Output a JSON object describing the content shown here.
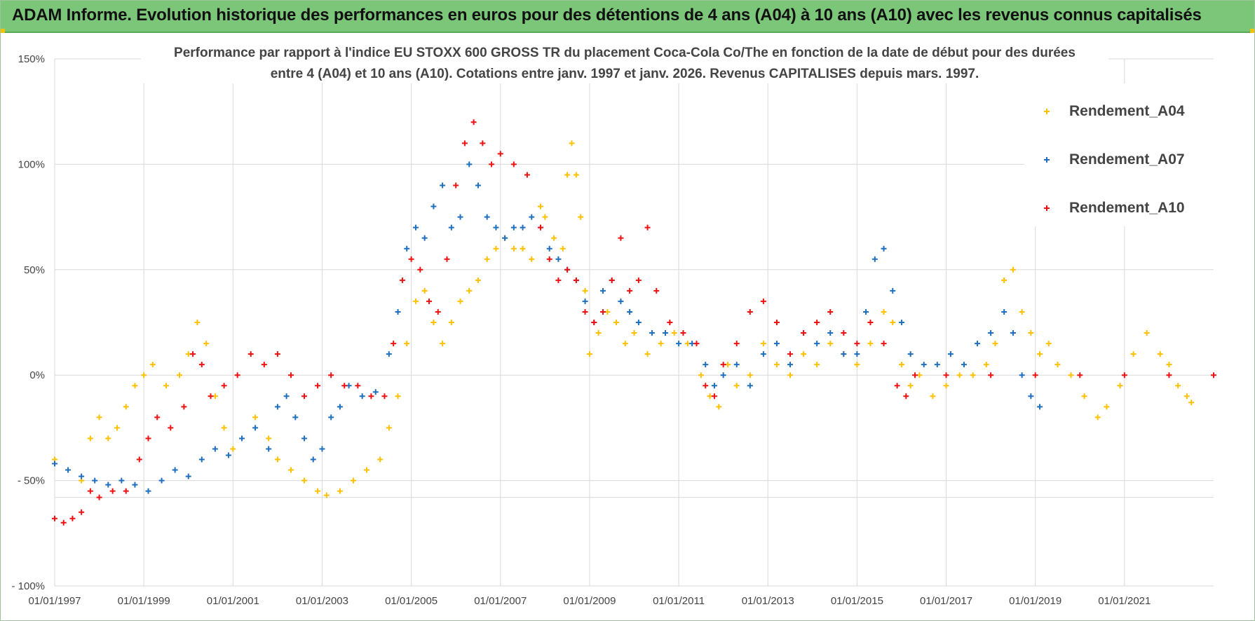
{
  "banner": {
    "title": "ADAM Informe. Evolution historique des performances en euros pour des détentions de 4 ans (A04) à 10 ans (A10) avec les revenus connus capitalisés"
  },
  "colors": {
    "banner_bg": "#7cc67a",
    "A04": "#ffc000",
    "A07": "#1f6fbf",
    "A10": "#ee1111"
  },
  "chart_data": {
    "type": "scatter",
    "title_line1": "Performance par rapport à l'indice EU STOXX 600 GROSS TR  du placement Coca-Cola Co/The en fonction de la date de début pour des durées",
    "title_line2": "entre 4 (A04) et 10 ans (A10). Cotations entre janv. 1997 et janv. 2026. Revenus CAPITALISES depuis mars. 1997.",
    "xlabel": "",
    "ylabel": "",
    "xlim": [
      1997.0,
      2023.0
    ],
    "ylim": [
      -100,
      150
    ],
    "y_ticks": [
      {
        "value": 150,
        "label": "150%"
      },
      {
        "value": 100,
        "label": "100%"
      },
      {
        "value": 50,
        "label": "50%"
      },
      {
        "value": 0,
        "label": "0%"
      },
      {
        "value": -50,
        "label": "- 50%"
      },
      {
        "value": -100,
        "label": "- 100%"
      }
    ],
    "x_ticks": [
      {
        "value": 1997,
        "label": "01/01/1997"
      },
      {
        "value": 1999,
        "label": "01/01/1999"
      },
      {
        "value": 2001,
        "label": "01/01/2001"
      },
      {
        "value": 2003,
        "label": "01/01/2003"
      },
      {
        "value": 2005,
        "label": "01/01/2005"
      },
      {
        "value": 2007,
        "label": "01/01/2007"
      },
      {
        "value": 2009,
        "label": "01/01/2009"
      },
      {
        "value": 2011,
        "label": "01/01/2011"
      },
      {
        "value": 2013,
        "label": "01/01/2013"
      },
      {
        "value": 2015,
        "label": "01/01/2015"
      },
      {
        "value": 2017,
        "label": "01/01/2017"
      },
      {
        "value": 2019,
        "label": "01/01/2019"
      },
      {
        "value": 2021,
        "label": "01/01/2021"
      }
    ],
    "legend_position": "top-right",
    "series": [
      {
        "name": "Rendement_A04",
        "color": "#ffc000",
        "points": [
          [
            1997.0,
            -40
          ],
          [
            1997.3,
            -45
          ],
          [
            1997.6,
            -50
          ],
          [
            1997.8,
            -30
          ],
          [
            1998.0,
            -20
          ],
          [
            1998.2,
            -30
          ],
          [
            1998.4,
            -25
          ],
          [
            1998.6,
            -15
          ],
          [
            1998.8,
            -5
          ],
          [
            1999.0,
            0
          ],
          [
            1999.2,
            5
          ],
          [
            1999.5,
            -5
          ],
          [
            1999.8,
            0
          ],
          [
            2000.0,
            10
          ],
          [
            2000.2,
            25
          ],
          [
            2000.4,
            15
          ],
          [
            2000.6,
            -10
          ],
          [
            2000.8,
            -25
          ],
          [
            2001.0,
            -35
          ],
          [
            2001.2,
            -30
          ],
          [
            2001.5,
            -20
          ],
          [
            2001.8,
            -30
          ],
          [
            2002.0,
            -40
          ],
          [
            2002.3,
            -45
          ],
          [
            2002.6,
            -50
          ],
          [
            2002.9,
            -55
          ],
          [
            2003.1,
            -57
          ],
          [
            2003.4,
            -55
          ],
          [
            2003.7,
            -50
          ],
          [
            2004.0,
            -45
          ],
          [
            2004.3,
            -40
          ],
          [
            2004.5,
            -25
          ],
          [
            2004.7,
            -10
          ],
          [
            2004.9,
            15
          ],
          [
            2005.1,
            35
          ],
          [
            2005.3,
            40
          ],
          [
            2005.5,
            25
          ],
          [
            2005.7,
            15
          ],
          [
            2005.9,
            25
          ],
          [
            2006.1,
            35
          ],
          [
            2006.3,
            40
          ],
          [
            2006.5,
            45
          ],
          [
            2006.7,
            55
          ],
          [
            2006.9,
            60
          ],
          [
            2007.1,
            65
          ],
          [
            2007.3,
            60
          ],
          [
            2007.5,
            60
          ],
          [
            2007.7,
            55
          ],
          [
            2007.9,
            80
          ],
          [
            2008.0,
            75
          ],
          [
            2008.2,
            65
          ],
          [
            2008.4,
            60
          ],
          [
            2008.5,
            95
          ],
          [
            2008.6,
            110
          ],
          [
            2008.7,
            95
          ],
          [
            2008.8,
            75
          ],
          [
            2008.9,
            40
          ],
          [
            2009.0,
            10
          ],
          [
            2009.2,
            20
          ],
          [
            2009.4,
            30
          ],
          [
            2009.6,
            25
          ],
          [
            2009.8,
            15
          ],
          [
            2010.0,
            20
          ],
          [
            2010.3,
            10
          ],
          [
            2010.6,
            15
          ],
          [
            2010.9,
            20
          ],
          [
            2011.2,
            15
          ],
          [
            2011.5,
            0
          ],
          [
            2011.7,
            -10
          ],
          [
            2011.9,
            -15
          ],
          [
            2012.1,
            5
          ],
          [
            2012.3,
            -5
          ],
          [
            2012.6,
            0
          ],
          [
            2012.9,
            15
          ],
          [
            2013.2,
            5
          ],
          [
            2013.5,
            0
          ],
          [
            2013.8,
            10
          ],
          [
            2014.1,
            5
          ],
          [
            2014.4,
            15
          ],
          [
            2014.7,
            10
          ],
          [
            2015.0,
            5
          ],
          [
            2015.3,
            15
          ],
          [
            2015.6,
            30
          ],
          [
            2015.8,
            25
          ],
          [
            2016.0,
            5
          ],
          [
            2016.2,
            -5
          ],
          [
            2016.4,
            0
          ],
          [
            2016.7,
            -10
          ],
          [
            2017.0,
            -5
          ],
          [
            2017.3,
            0
          ],
          [
            2017.6,
            0
          ],
          [
            2017.9,
            5
          ],
          [
            2018.1,
            15
          ],
          [
            2018.3,
            45
          ],
          [
            2018.5,
            50
          ],
          [
            2018.7,
            30
          ],
          [
            2018.9,
            20
          ],
          [
            2019.1,
            10
          ],
          [
            2019.3,
            15
          ],
          [
            2019.5,
            5
          ],
          [
            2019.8,
            0
          ],
          [
            2020.1,
            -10
          ],
          [
            2020.4,
            -20
          ],
          [
            2020.6,
            -15
          ],
          [
            2020.9,
            -5
          ],
          [
            2021.2,
            10
          ],
          [
            2021.5,
            20
          ],
          [
            2021.8,
            10
          ],
          [
            2022.0,
            5
          ],
          [
            2022.2,
            -5
          ],
          [
            2022.4,
            -10
          ],
          [
            2022.5,
            -13
          ]
        ]
      },
      {
        "name": "Rendement_A07",
        "color": "#1f6fbf",
        "points": [
          [
            1997.0,
            -42
          ],
          [
            1997.3,
            -45
          ],
          [
            1997.6,
            -48
          ],
          [
            1997.9,
            -50
          ],
          [
            1998.2,
            -52
          ],
          [
            1998.5,
            -50
          ],
          [
            1998.8,
            -52
          ],
          [
            1999.1,
            -55
          ],
          [
            1999.4,
            -50
          ],
          [
            1999.7,
            -45
          ],
          [
            2000.0,
            -48
          ],
          [
            2000.3,
            -40
          ],
          [
            2000.6,
            -35
          ],
          [
            2000.9,
            -38
          ],
          [
            2001.2,
            -30
          ],
          [
            2001.5,
            -25
          ],
          [
            2001.8,
            -35
          ],
          [
            2002.0,
            -15
          ],
          [
            2002.2,
            -10
          ],
          [
            2002.4,
            -20
          ],
          [
            2002.6,
            -30
          ],
          [
            2002.8,
            -40
          ],
          [
            2003.0,
            -35
          ],
          [
            2003.2,
            -20
          ],
          [
            2003.4,
            -15
          ],
          [
            2003.6,
            -5
          ],
          [
            2003.9,
            -10
          ],
          [
            2004.2,
            -8
          ],
          [
            2004.5,
            10
          ],
          [
            2004.7,
            30
          ],
          [
            2004.9,
            60
          ],
          [
            2005.1,
            70
          ],
          [
            2005.3,
            65
          ],
          [
            2005.5,
            80
          ],
          [
            2005.7,
            90
          ],
          [
            2005.9,
            70
          ],
          [
            2006.1,
            75
          ],
          [
            2006.3,
            100
          ],
          [
            2006.5,
            90
          ],
          [
            2006.7,
            75
          ],
          [
            2006.9,
            70
          ],
          [
            2007.1,
            65
          ],
          [
            2007.3,
            70
          ],
          [
            2007.5,
            70
          ],
          [
            2007.7,
            75
          ],
          [
            2007.9,
            70
          ],
          [
            2008.1,
            60
          ],
          [
            2008.3,
            55
          ],
          [
            2008.5,
            50
          ],
          [
            2008.7,
            45
          ],
          [
            2008.9,
            35
          ],
          [
            2009.1,
            25
          ],
          [
            2009.3,
            40
          ],
          [
            2009.5,
            45
          ],
          [
            2009.7,
            35
          ],
          [
            2009.9,
            30
          ],
          [
            2010.1,
            25
          ],
          [
            2010.4,
            20
          ],
          [
            2010.7,
            20
          ],
          [
            2011.0,
            15
          ],
          [
            2011.3,
            15
          ],
          [
            2011.6,
            5
          ],
          [
            2011.8,
            -5
          ],
          [
            2012.0,
            0
          ],
          [
            2012.3,
            5
          ],
          [
            2012.6,
            -5
          ],
          [
            2012.9,
            10
          ],
          [
            2013.2,
            15
          ],
          [
            2013.5,
            5
          ],
          [
            2013.8,
            20
          ],
          [
            2014.1,
            15
          ],
          [
            2014.4,
            20
          ],
          [
            2014.7,
            10
          ],
          [
            2015.0,
            10
          ],
          [
            2015.2,
            30
          ],
          [
            2015.4,
            55
          ],
          [
            2015.6,
            60
          ],
          [
            2015.8,
            40
          ],
          [
            2016.0,
            25
          ],
          [
            2016.2,
            10
          ],
          [
            2016.5,
            5
          ],
          [
            2016.8,
            5
          ],
          [
            2017.1,
            10
          ],
          [
            2017.4,
            5
          ],
          [
            2017.7,
            15
          ],
          [
            2018.0,
            20
          ],
          [
            2018.3,
            30
          ],
          [
            2018.5,
            20
          ],
          [
            2018.7,
            0
          ],
          [
            2018.9,
            -10
          ],
          [
            2019.1,
            -15
          ]
        ]
      },
      {
        "name": "Rendement_A10",
        "color": "#ee1111",
        "points": [
          [
            1997.0,
            -68
          ],
          [
            1997.2,
            -70
          ],
          [
            1997.4,
            -68
          ],
          [
            1997.6,
            -65
          ],
          [
            1997.8,
            -55
          ],
          [
            1998.0,
            -58
          ],
          [
            1998.3,
            -55
          ],
          [
            1998.6,
            -55
          ],
          [
            1998.9,
            -40
          ],
          [
            1999.1,
            -30
          ],
          [
            1999.3,
            -20
          ],
          [
            1999.6,
            -25
          ],
          [
            1999.9,
            -15
          ],
          [
            2000.1,
            10
          ],
          [
            2000.3,
            5
          ],
          [
            2000.5,
            -10
          ],
          [
            2000.8,
            -5
          ],
          [
            2001.1,
            0
          ],
          [
            2001.4,
            10
          ],
          [
            2001.7,
            5
          ],
          [
            2002.0,
            10
          ],
          [
            2002.3,
            0
          ],
          [
            2002.6,
            -10
          ],
          [
            2002.9,
            -5
          ],
          [
            2003.2,
            0
          ],
          [
            2003.5,
            -5
          ],
          [
            2003.8,
            -5
          ],
          [
            2004.1,
            -10
          ],
          [
            2004.4,
            -10
          ],
          [
            2004.6,
            15
          ],
          [
            2004.8,
            45
          ],
          [
            2005.0,
            55
          ],
          [
            2005.2,
            50
          ],
          [
            2005.4,
            35
          ],
          [
            2005.6,
            30
          ],
          [
            2005.8,
            55
          ],
          [
            2006.0,
            90
          ],
          [
            2006.2,
            110
          ],
          [
            2006.4,
            120
          ],
          [
            2006.6,
            110
          ],
          [
            2006.8,
            100
          ],
          [
            2007.0,
            105
          ],
          [
            2007.3,
            100
          ],
          [
            2007.6,
            95
          ],
          [
            2007.9,
            70
          ],
          [
            2008.1,
            55
          ],
          [
            2008.3,
            45
          ],
          [
            2008.5,
            50
          ],
          [
            2008.7,
            45
          ],
          [
            2008.9,
            30
          ],
          [
            2009.1,
            25
          ],
          [
            2009.3,
            30
          ],
          [
            2009.5,
            45
          ],
          [
            2009.7,
            65
          ],
          [
            2009.9,
            40
          ],
          [
            2010.1,
            45
          ],
          [
            2010.3,
            70
          ],
          [
            2010.5,
            40
          ],
          [
            2010.8,
            25
          ],
          [
            2011.1,
            20
          ],
          [
            2011.4,
            15
          ],
          [
            2011.6,
            -5
          ],
          [
            2011.8,
            -10
          ],
          [
            2012.0,
            5
          ],
          [
            2012.3,
            15
          ],
          [
            2012.6,
            30
          ],
          [
            2012.9,
            35
          ],
          [
            2013.2,
            25
          ],
          [
            2013.5,
            10
          ],
          [
            2013.8,
            20
          ],
          [
            2014.1,
            25
          ],
          [
            2014.4,
            30
          ],
          [
            2014.7,
            20
          ],
          [
            2015.0,
            15
          ],
          [
            2015.3,
            25
          ],
          [
            2015.6,
            15
          ],
          [
            2015.9,
            -5
          ],
          [
            2016.1,
            -10
          ],
          [
            2016.3,
            0
          ],
          [
            2017.0,
            0
          ],
          [
            2018.0,
            0
          ],
          [
            2019.0,
            0
          ],
          [
            2020.0,
            0
          ],
          [
            2021.0,
            0
          ],
          [
            2022.0,
            0
          ],
          [
            2023.0,
            0
          ]
        ]
      }
    ]
  }
}
